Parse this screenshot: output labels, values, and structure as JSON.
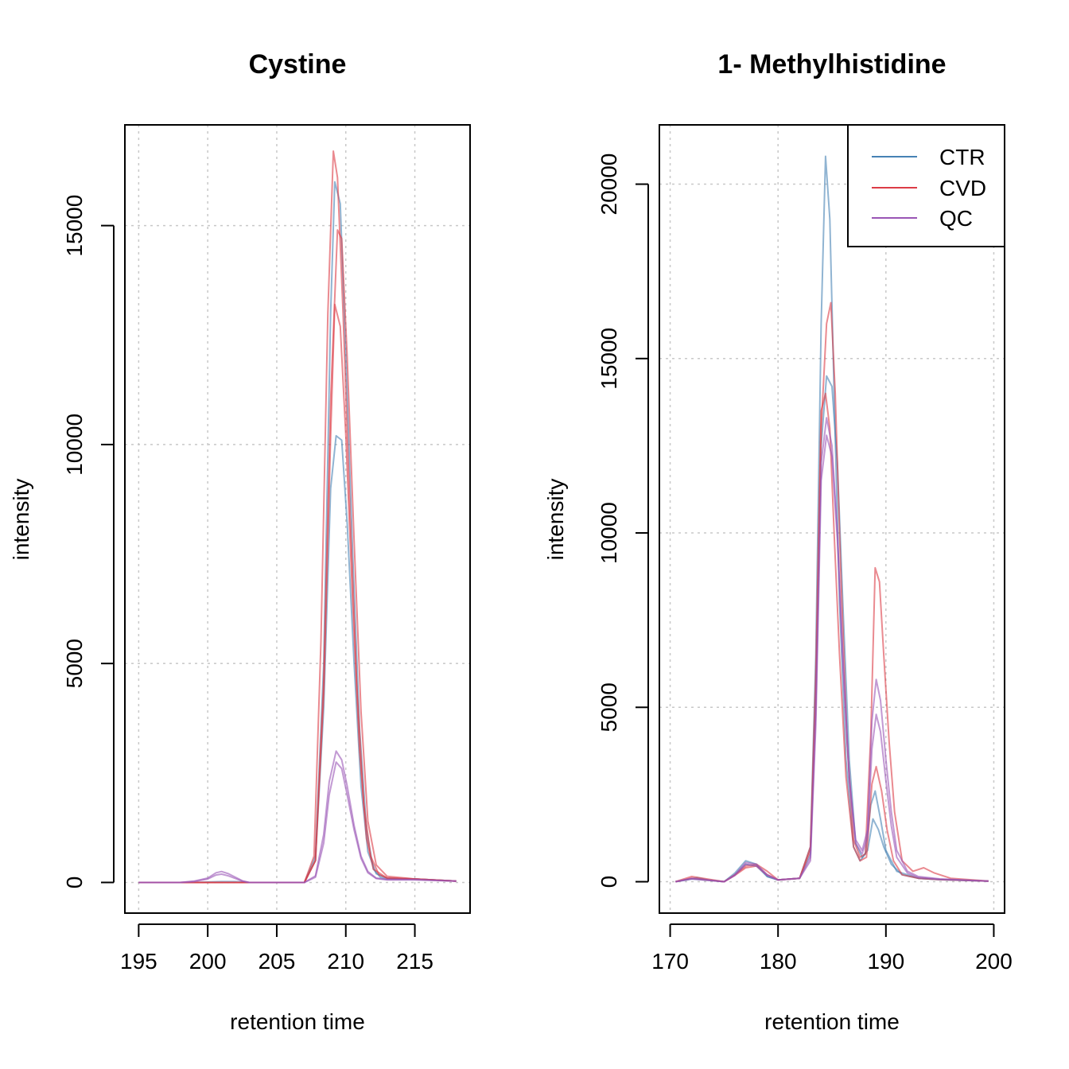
{
  "colors": {
    "CTR": "#4682b4",
    "CVD": "#dc3c46",
    "QC": "#9955b5"
  },
  "chart_data": [
    {
      "type": "line",
      "title": "Cystine",
      "xlabel": "retention time",
      "ylabel": "intensity",
      "xlim": [
        194,
        219
      ],
      "ylim": [
        -700,
        17300
      ],
      "xticks": [
        195,
        200,
        205,
        210,
        215
      ],
      "yticks": [
        0,
        5000,
        10000,
        15000
      ],
      "grid": true,
      "series": [
        {
          "group": "CTR",
          "x": [
            195,
            197,
            199,
            200,
            201,
            202,
            203,
            205,
            207,
            207.8,
            208.4,
            208.9,
            209.2,
            209.6,
            210,
            210.5,
            211,
            211.5,
            212,
            212.5,
            213,
            215,
            218
          ],
          "y": [
            0,
            0,
            0,
            10,
            20,
            20,
            0,
            0,
            0,
            600,
            5000,
            13000,
            16000,
            15500,
            12000,
            7500,
            3500,
            1200,
            300,
            120,
            80,
            80,
            30
          ]
        },
        {
          "group": "CTR",
          "x": [
            195,
            200,
            205,
            207,
            207.8,
            208.4,
            208.9,
            209.3,
            209.7,
            210.1,
            210.6,
            211.1,
            211.6,
            212.2,
            213,
            215,
            218
          ],
          "y": [
            0,
            0,
            0,
            0,
            500,
            4000,
            9000,
            10200,
            10100,
            8200,
            5000,
            2200,
            700,
            200,
            100,
            80,
            30
          ]
        },
        {
          "group": "CVD",
          "x": [
            195,
            200,
            205,
            207,
            207.7,
            208.2,
            208.7,
            209.1,
            209.4,
            209.8,
            210.3,
            210.8,
            211.3,
            211.8,
            212.4,
            213,
            215,
            218
          ],
          "y": [
            0,
            0,
            0,
            0,
            600,
            5500,
            13000,
            16700,
            16100,
            13000,
            8500,
            4500,
            1800,
            600,
            180,
            100,
            80,
            30
          ]
        },
        {
          "group": "CVD",
          "x": [
            195,
            200,
            205,
            207,
            207.8,
            208.4,
            208.9,
            209.4,
            209.7,
            210.1,
            210.6,
            211.1,
            211.6,
            212.2,
            213,
            215,
            218
          ],
          "y": [
            0,
            0,
            0,
            0,
            500,
            4600,
            11000,
            14900,
            14700,
            12000,
            7800,
            3900,
            1400,
            400,
            140,
            80,
            30
          ]
        },
        {
          "group": "CVD",
          "x": [
            195,
            200,
            205,
            207,
            207.8,
            208.4,
            208.9,
            209.2,
            209.6,
            210,
            210.5,
            211,
            211.5,
            212,
            213,
            215,
            218
          ],
          "y": [
            0,
            0,
            0,
            0,
            500,
            4300,
            10200,
            13200,
            12700,
            10200,
            6400,
            3000,
            1000,
            300,
            100,
            80,
            30
          ]
        },
        {
          "group": "QC",
          "x": [
            195,
            198,
            199,
            200,
            200.6,
            201,
            201.5,
            202,
            202.5,
            203,
            205,
            207,
            207.8,
            208.4,
            208.8,
            209.3,
            209.7,
            210.1,
            210.6,
            211.1,
            211.6,
            212.2,
            213,
            215,
            218
          ],
          "y": [
            0,
            0,
            30,
            100,
            220,
            250,
            200,
            120,
            40,
            0,
            0,
            0,
            150,
            1100,
            2300,
            3000,
            2800,
            2200,
            1300,
            600,
            250,
            100,
            70,
            70,
            30
          ]
        },
        {
          "group": "QC",
          "x": [
            195,
            198,
            199,
            200,
            200.6,
            201,
            201.5,
            202,
            202.5,
            203,
            205,
            207,
            207.8,
            208.4,
            208.8,
            209.3,
            209.7,
            210.1,
            210.6,
            211.1,
            211.6,
            212.2,
            213,
            215,
            218
          ],
          "y": [
            0,
            0,
            20,
            80,
            170,
            190,
            150,
            90,
            30,
            0,
            0,
            0,
            120,
            900,
            2000,
            2750,
            2600,
            2000,
            1200,
            550,
            220,
            90,
            60,
            60,
            30
          ]
        }
      ]
    },
    {
      "type": "line",
      "title": "1- Methylhistidine",
      "xlabel": "retention time",
      "ylabel": "intensity",
      "xlim": [
        169,
        201
      ],
      "ylim": [
        -900,
        21700
      ],
      "xticks": [
        170,
        180,
        190,
        200
      ],
      "yticks": [
        0,
        5000,
        10000,
        15000,
        20000
      ],
      "grid": true,
      "legend": {
        "position": "top-right",
        "entries": [
          "CTR",
          "CVD",
          "QC"
        ]
      },
      "series": [
        {
          "group": "CTR",
          "x": [
            170.5,
            171.5,
            172.5,
            173.5,
            175,
            176,
            177,
            178,
            179,
            180,
            182,
            183,
            183.5,
            184,
            184.4,
            184.8,
            185.2,
            185.7,
            186.3,
            187,
            187.6,
            188.1,
            188.6,
            189,
            189.5,
            190,
            191,
            193,
            195,
            199.5
          ],
          "y": [
            0,
            50,
            120,
            50,
            0,
            250,
            600,
            500,
            150,
            50,
            100,
            1000,
            6500,
            16000,
            20800,
            19000,
            14000,
            8000,
            3500,
            1000,
            600,
            800,
            2200,
            2600,
            1800,
            900,
            300,
            100,
            60,
            20
          ]
        },
        {
          "group": "CTR",
          "x": [
            170.5,
            172,
            175,
            176,
            177,
            178,
            179,
            180,
            182,
            183,
            183.5,
            184,
            184.5,
            185,
            185.5,
            186,
            186.6,
            187.2,
            187.8,
            188.3,
            188.8,
            189.3,
            189.8,
            190.5,
            191.5,
            193,
            195,
            199.5
          ],
          "y": [
            0,
            80,
            0,
            200,
            500,
            450,
            150,
            50,
            100,
            800,
            5500,
            12500,
            14500,
            14200,
            12000,
            8000,
            3500,
            1100,
            700,
            900,
            1800,
            1500,
            1000,
            500,
            200,
            100,
            60,
            20
          ]
        },
        {
          "group": "CVD",
          "x": [
            170.5,
            172,
            175,
            176,
            177,
            178,
            179,
            180,
            182,
            183,
            183.5,
            184,
            184.5,
            184.9,
            185.3,
            185.8,
            186.4,
            187,
            187.6,
            188.1,
            188.6,
            189,
            189.4,
            189.8,
            190.3,
            190.8,
            191.5,
            192.5,
            193.5,
            194.5,
            196,
            199.5
          ],
          "y": [
            0,
            150,
            0,
            200,
            450,
            500,
            300,
            50,
            100,
            1000,
            5000,
            13000,
            16000,
            16600,
            14000,
            9000,
            4000,
            1200,
            700,
            800,
            4200,
            9000,
            8600,
            6500,
            4000,
            2000,
            600,
            300,
            400,
            250,
            100,
            20
          ]
        },
        {
          "group": "CVD",
          "x": [
            170.5,
            172,
            175,
            176,
            177,
            178,
            179,
            180,
            182,
            183,
            183.5,
            184,
            184.4,
            184.8,
            185.2,
            185.7,
            186.3,
            187,
            187.6,
            188.2,
            188.7,
            189.1,
            189.6,
            190.1,
            190.7,
            191.5,
            193,
            195,
            199.5
          ],
          "y": [
            0,
            100,
            0,
            180,
            400,
            450,
            200,
            50,
            100,
            900,
            6000,
            13500,
            14000,
            13000,
            10000,
            6500,
            3000,
            1000,
            600,
            700,
            2800,
            3300,
            2600,
            1500,
            600,
            200,
            100,
            60,
            20
          ]
        },
        {
          "group": "QC",
          "x": [
            170.5,
            172,
            175,
            176,
            177,
            178,
            179,
            180,
            182,
            183,
            183.5,
            184,
            184.5,
            185,
            185.5,
            186,
            186.6,
            187.2,
            187.8,
            188.3,
            188.7,
            189.1,
            189.5,
            190,
            190.5,
            191,
            192,
            193,
            195,
            199.5
          ],
          "y": [
            0,
            100,
            0,
            200,
            550,
            500,
            200,
            50,
            100,
            700,
            5000,
            12000,
            13300,
            12500,
            10000,
            6500,
            3000,
            1200,
            900,
            1500,
            4600,
            5800,
            5200,
            3500,
            2000,
            900,
            300,
            150,
            80,
            20
          ]
        },
        {
          "group": "QC",
          "x": [
            170.5,
            172,
            175,
            176,
            177,
            178,
            179,
            180,
            182,
            183,
            183.5,
            184,
            184.5,
            185,
            185.5,
            186,
            186.6,
            187.2,
            187.8,
            188.3,
            188.7,
            189.1,
            189.5,
            190,
            190.5,
            191,
            192,
            193,
            195,
            199.5
          ],
          "y": [
            0,
            80,
            0,
            180,
            500,
            450,
            180,
            50,
            100,
            600,
            4500,
            11500,
            12800,
            12200,
            9800,
            6300,
            2900,
            1100,
            800,
            1300,
            3800,
            4800,
            4300,
            2900,
            1600,
            700,
            250,
            120,
            70,
            20
          ]
        }
      ]
    }
  ]
}
